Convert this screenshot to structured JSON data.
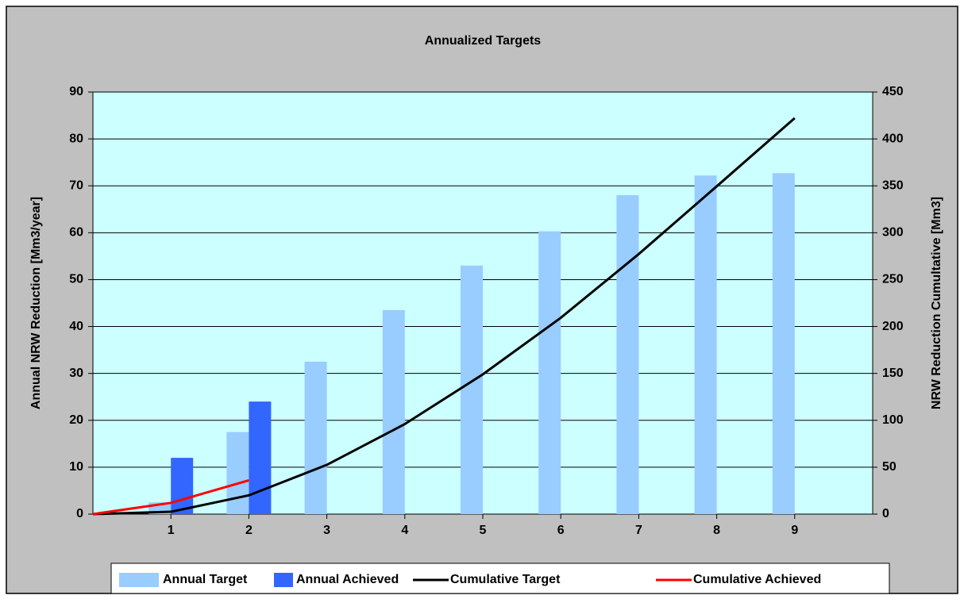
{
  "chart_data": {
    "type": "combo",
    "title": "Annualized Targets",
    "y_label": "Annual NRW Reduction [Mm3/year]",
    "y2_label": "NRW Reduction Cumultative [Mm3]",
    "xlim": [
      0,
      10
    ],
    "xticks": [
      1,
      2,
      3,
      4,
      5,
      6,
      7,
      8,
      9
    ],
    "ylim": [
      0,
      90
    ],
    "yticks": [
      0,
      10,
      20,
      30,
      40,
      50,
      60,
      70,
      80,
      90
    ],
    "y2lim": [
      0,
      450
    ],
    "y2ticks": [
      0,
      50,
      100,
      150,
      200,
      250,
      300,
      350,
      400,
      450
    ],
    "grid": true,
    "legend": "bottom",
    "series": [
      {
        "name": "Annual Target",
        "type": "bar",
        "color": "#99ccff",
        "x": [
          1,
          2,
          3,
          4,
          5,
          6,
          7,
          8,
          9
        ],
        "values": [
          2.5,
          17.5,
          32.5,
          43.5,
          53,
          60.3,
          68,
          72.2,
          72.7
        ]
      },
      {
        "name": "Annual Achieved",
        "type": "bar",
        "color": "#3366ff",
        "x": [
          1,
          2
        ],
        "values": [
          12,
          24
        ]
      },
      {
        "name": "Cumulative Target",
        "type": "line",
        "axis": "y2",
        "color": "#000000",
        "x": [
          0,
          1,
          2,
          3,
          4,
          5,
          6,
          7,
          8,
          9
        ],
        "values": [
          0,
          2.5,
          20,
          52.5,
          96,
          149,
          209.3,
          277.3,
          349.5,
          422.2
        ]
      },
      {
        "name": "Cumulative Achieved",
        "type": "line",
        "axis": "y2",
        "color": "#ff0000",
        "x": [
          0,
          1,
          2
        ],
        "values": [
          0,
          12,
          36
        ]
      }
    ]
  }
}
